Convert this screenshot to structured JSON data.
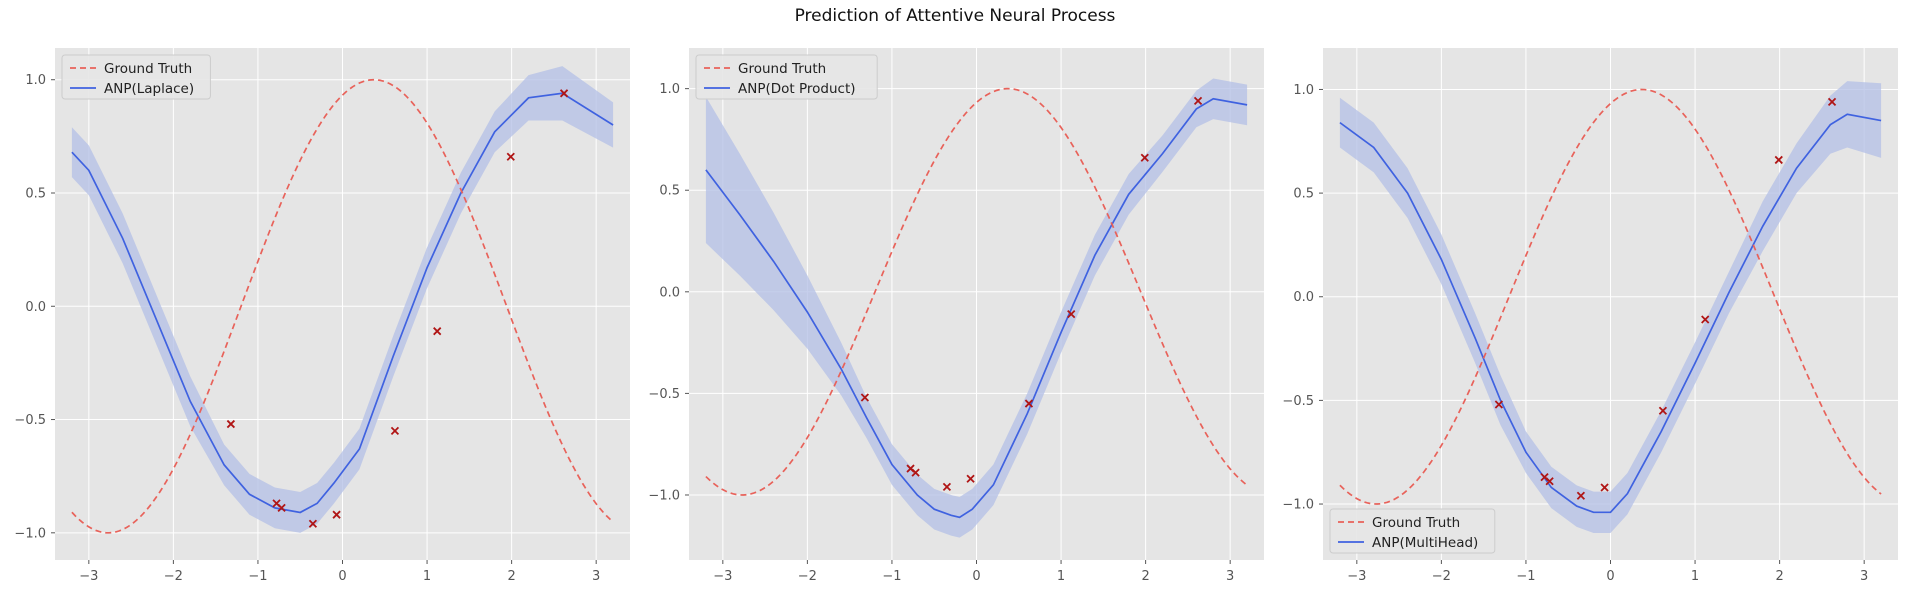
{
  "figure": {
    "title": "Prediction of Attentive Neural Process",
    "colors": {
      "background": "#e5e5e5",
      "grid": "#ffffff",
      "ground_truth": "#e8625a",
      "prediction": "#3f62e0",
      "band": "#b3bfe6",
      "context_points": "#b01515"
    }
  },
  "chart_data": [
    {
      "type": "line",
      "title": "",
      "xlabel": "",
      "ylabel": "",
      "xlim": [
        -3.4,
        3.4
      ],
      "ylim": [
        -1.12,
        1.14
      ],
      "xticks": [
        -3,
        -2,
        -1,
        0,
        1,
        2,
        3
      ],
      "yticks": [
        -1.0,
        -0.5,
        0.0,
        0.5,
        1.0
      ],
      "grid": true,
      "legend_position": "top-left",
      "series": [
        {
          "name": "Ground Truth",
          "style": "dashed",
          "function": "sin(x + 1.2)",
          "x_range": [
            -3.2,
            3.2
          ]
        },
        {
          "name": "ANP(Laplace)",
          "style": "solid",
          "x": [
            -3.2,
            -3.0,
            -2.6,
            -2.2,
            -1.8,
            -1.4,
            -1.1,
            -0.8,
            -0.5,
            -0.3,
            -0.1,
            0.2,
            0.6,
            1.0,
            1.4,
            1.8,
            2.2,
            2.6,
            3.2
          ],
          "y": [
            0.68,
            0.6,
            0.3,
            -0.06,
            -0.42,
            -0.7,
            -0.83,
            -0.89,
            -0.91,
            -0.87,
            -0.78,
            -0.63,
            -0.22,
            0.17,
            0.5,
            0.77,
            0.92,
            0.94,
            0.8
          ],
          "band": [
            0.11,
            0.11,
            0.11,
            0.11,
            0.11,
            0.09,
            0.09,
            0.09,
            0.09,
            0.09,
            0.09,
            0.09,
            0.09,
            0.09,
            0.09,
            0.09,
            0.1,
            0.12,
            0.1
          ]
        }
      ],
      "context_points": {
        "x": [
          -1.32,
          -0.78,
          -0.72,
          -0.35,
          -0.07,
          0.62,
          1.12,
          1.99,
          2.62
        ],
        "y": [
          -0.52,
          -0.87,
          -0.89,
          -0.96,
          -0.92,
          -0.55,
          -0.11,
          0.66,
          0.94
        ]
      }
    },
    {
      "type": "line",
      "title": "",
      "xlabel": "",
      "ylabel": "",
      "xlim": [
        -3.4,
        3.4
      ],
      "ylim": [
        -1.32,
        1.2
      ],
      "xticks": [
        -3,
        -2,
        -1,
        0,
        1,
        2,
        3
      ],
      "yticks": [
        -1.0,
        -0.5,
        0.0,
        0.5,
        1.0
      ],
      "grid": true,
      "legend_position": "top-left",
      "series": [
        {
          "name": "Ground Truth",
          "style": "dashed",
          "function": "sin(x + 1.2)",
          "x_range": [
            -3.2,
            3.2
          ]
        },
        {
          "name": "ANP(Dot Product)",
          "style": "solid",
          "x": [
            -3.2,
            -2.8,
            -2.4,
            -2.0,
            -1.6,
            -1.3,
            -1.0,
            -0.7,
            -0.5,
            -0.3,
            -0.2,
            -0.05,
            0.2,
            0.6,
            1.0,
            1.4,
            1.8,
            2.2,
            2.6,
            2.8,
            3.2
          ],
          "y": [
            0.6,
            0.38,
            0.15,
            -0.1,
            -0.38,
            -0.62,
            -0.85,
            -1.0,
            -1.07,
            -1.1,
            -1.11,
            -1.07,
            -0.95,
            -0.6,
            -0.2,
            0.18,
            0.48,
            0.68,
            0.9,
            0.95,
            0.92
          ],
          "band": [
            0.36,
            0.3,
            0.24,
            0.18,
            0.13,
            0.1,
            0.1,
            0.1,
            0.1,
            0.1,
            0.1,
            0.1,
            0.1,
            0.1,
            0.1,
            0.1,
            0.1,
            0.09,
            0.09,
            0.1,
            0.1
          ]
        }
      ],
      "context_points": {
        "x": [
          -1.32,
          -0.78,
          -0.72,
          -0.35,
          -0.07,
          0.62,
          1.12,
          1.99,
          2.62
        ],
        "y": [
          -0.52,
          -0.87,
          -0.89,
          -0.96,
          -0.92,
          -0.55,
          -0.11,
          0.66,
          0.94
        ]
      }
    },
    {
      "type": "line",
      "title": "",
      "xlabel": "",
      "ylabel": "",
      "xlim": [
        -3.4,
        3.4
      ],
      "ylim": [
        -1.27,
        1.2
      ],
      "xticks": [
        -3,
        -2,
        -1,
        0,
        1,
        2,
        3
      ],
      "yticks": [
        -1.0,
        -0.5,
        0.0,
        0.5,
        1.0
      ],
      "grid": true,
      "legend_position": "bottom-left",
      "series": [
        {
          "name": "Ground Truth",
          "style": "dashed",
          "function": "sin(x + 1.2)",
          "x_range": [
            -3.2,
            3.2
          ]
        },
        {
          "name": "ANP(MultiHead)",
          "style": "solid",
          "x": [
            -3.2,
            -2.8,
            -2.4,
            -2.0,
            -1.6,
            -1.3,
            -1.0,
            -0.7,
            -0.4,
            -0.2,
            0.0,
            0.2,
            0.6,
            1.0,
            1.4,
            1.8,
            2.2,
            2.6,
            2.8,
            3.2
          ],
          "y": [
            0.84,
            0.72,
            0.5,
            0.18,
            -0.2,
            -0.5,
            -0.75,
            -0.92,
            -1.01,
            -1.04,
            -1.04,
            -0.95,
            -0.65,
            -0.32,
            0.02,
            0.34,
            0.62,
            0.83,
            0.88,
            0.85
          ],
          "band": [
            0.12,
            0.12,
            0.12,
            0.12,
            0.12,
            0.12,
            0.1,
            0.1,
            0.1,
            0.1,
            0.1,
            0.1,
            0.1,
            0.1,
            0.1,
            0.12,
            0.12,
            0.14,
            0.16,
            0.18
          ]
        }
      ],
      "context_points": {
        "x": [
          -1.32,
          -0.78,
          -0.72,
          -0.35,
          -0.07,
          0.62,
          1.12,
          1.99,
          2.62
        ],
        "y": [
          -0.52,
          -0.87,
          -0.89,
          -0.96,
          -0.92,
          -0.55,
          -0.11,
          0.66,
          0.94
        ]
      }
    }
  ]
}
